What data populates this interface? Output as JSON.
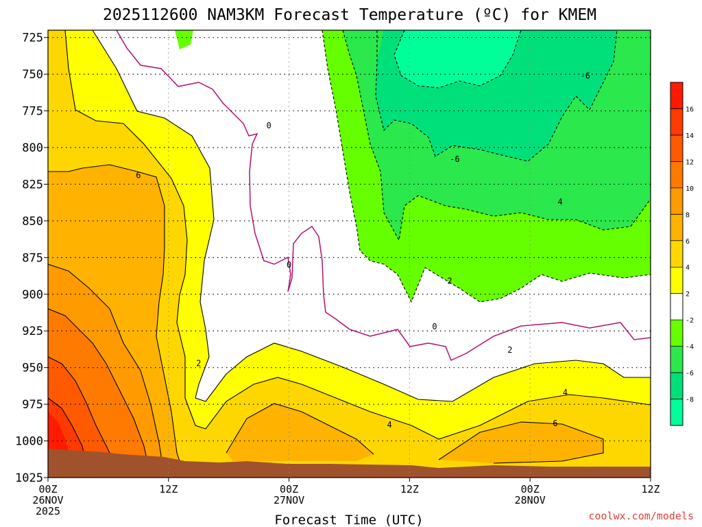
{
  "chart_data": {
    "type": "heatmap",
    "title": "2025112600 NAM3KM Forecast Temperature (ºC) for KMEM",
    "xlabel": "Forecast Time (UTC)",
    "ylabel": "",
    "x_ticks": [
      {
        "hours": 0,
        "label1": "00Z",
        "label2": "26NOV",
        "label3": "2025"
      },
      {
        "hours": 12,
        "label1": "12Z",
        "label2": "",
        "label3": ""
      },
      {
        "hours": 24,
        "label1": "00Z",
        "label2": "27NOV",
        "label3": ""
      },
      {
        "hours": 36,
        "label1": "12Z",
        "label2": "",
        "label3": ""
      },
      {
        "hours": 48,
        "label1": "00Z",
        "label2": "28NOV",
        "label3": ""
      },
      {
        "hours": 60,
        "label1": "12Z",
        "label2": "",
        "label3": ""
      }
    ],
    "xlim_hours": [
      0,
      60
    ],
    "y_ticks": [
      725,
      750,
      775,
      800,
      825,
      850,
      875,
      900,
      925,
      950,
      975,
      1000,
      1025
    ],
    "ylim": [
      720,
      1025
    ],
    "grid": true,
    "colorbar": {
      "levels": [
        -10,
        -8,
        -6,
        -4,
        -2,
        2,
        4,
        6,
        8,
        10,
        12,
        14,
        16,
        18
      ],
      "tick_labels": [
        "-8",
        "-6",
        "-4",
        "-2",
        "2",
        "4",
        "6",
        "8",
        "10",
        "12",
        "14",
        "16"
      ],
      "colors": [
        "#00ff99",
        "#00e07a",
        "#2be84c",
        "#66ff00",
        "#ffffff",
        "#ffff00",
        "#ffd700",
        "#ffb300",
        "#ff9a00",
        "#ff7a00",
        "#ff5a00",
        "#ff3a00",
        "#ff1a00"
      ]
    },
    "contour_labels": [
      {
        "hours": 22,
        "p": 785,
        "text": "0"
      },
      {
        "hours": 24,
        "p": 880,
        "text": "0"
      },
      {
        "hours": 38.5,
        "p": 922,
        "text": "0"
      },
      {
        "hours": 9,
        "p": 819,
        "text": "6"
      },
      {
        "hours": 15,
        "p": 947,
        "text": "2"
      },
      {
        "hours": 40.5,
        "p": 808,
        "text": "-6"
      },
      {
        "hours": 53.5,
        "p": 751,
        "text": "-6"
      },
      {
        "hours": 51,
        "p": 837,
        "text": "4"
      },
      {
        "hours": 40,
        "p": 891,
        "text": "2"
      },
      {
        "hours": 46,
        "p": 938,
        "text": "2"
      },
      {
        "hours": 51.5,
        "p": 967,
        "text": "4"
      },
      {
        "hours": 34,
        "p": 989,
        "text": "4"
      },
      {
        "hours": 50.5,
        "p": 988,
        "text": "6"
      }
    ],
    "terrain_color": "#a0522d"
  },
  "footer": {
    "credit": "coolwx.com/models"
  }
}
